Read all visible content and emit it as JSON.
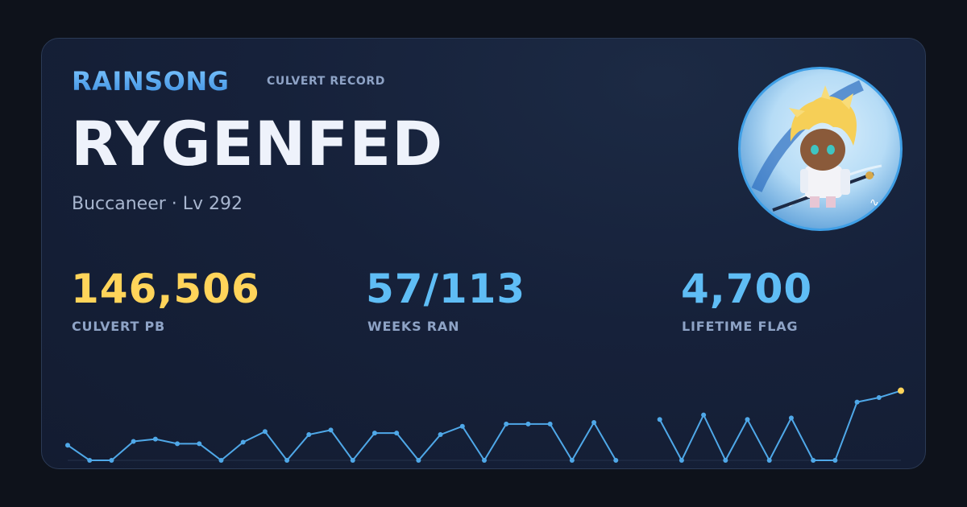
{
  "brand": "RAINSONG",
  "subtitle": "CULVERT RECORD",
  "player": {
    "name": "RYGENFED",
    "class_level": "Buccaneer · Lv 292"
  },
  "stats": [
    {
      "value": "146,506",
      "label": "CULVERT PB",
      "color": "#ffd45a"
    },
    {
      "value": "57/113",
      "label": "WEEKS RAN",
      "color": "#5fbdf5"
    },
    {
      "value": "4,700",
      "label": "LIFETIME FLAG",
      "color": "#5fbdf5"
    }
  ],
  "avatar": {
    "icon": "character-avatar-icon"
  },
  "chart_data": {
    "type": "line",
    "title": "",
    "xlabel": "",
    "ylabel": "",
    "ylim": [
      0,
      100
    ],
    "grid": false,
    "series_color": "#4fa8e8",
    "highlight_color": "#ffd45a",
    "segments": [
      [
        20,
        0,
        0,
        25,
        28,
        22,
        22,
        0,
        24,
        38,
        0,
        34,
        40,
        0,
        36,
        36,
        0,
        34,
        45,
        0,
        48,
        48,
        48,
        0,
        50,
        0
      ],
      [
        54,
        0,
        60,
        0,
        54,
        0,
        56,
        0,
        0,
        77,
        83,
        92
      ]
    ]
  }
}
